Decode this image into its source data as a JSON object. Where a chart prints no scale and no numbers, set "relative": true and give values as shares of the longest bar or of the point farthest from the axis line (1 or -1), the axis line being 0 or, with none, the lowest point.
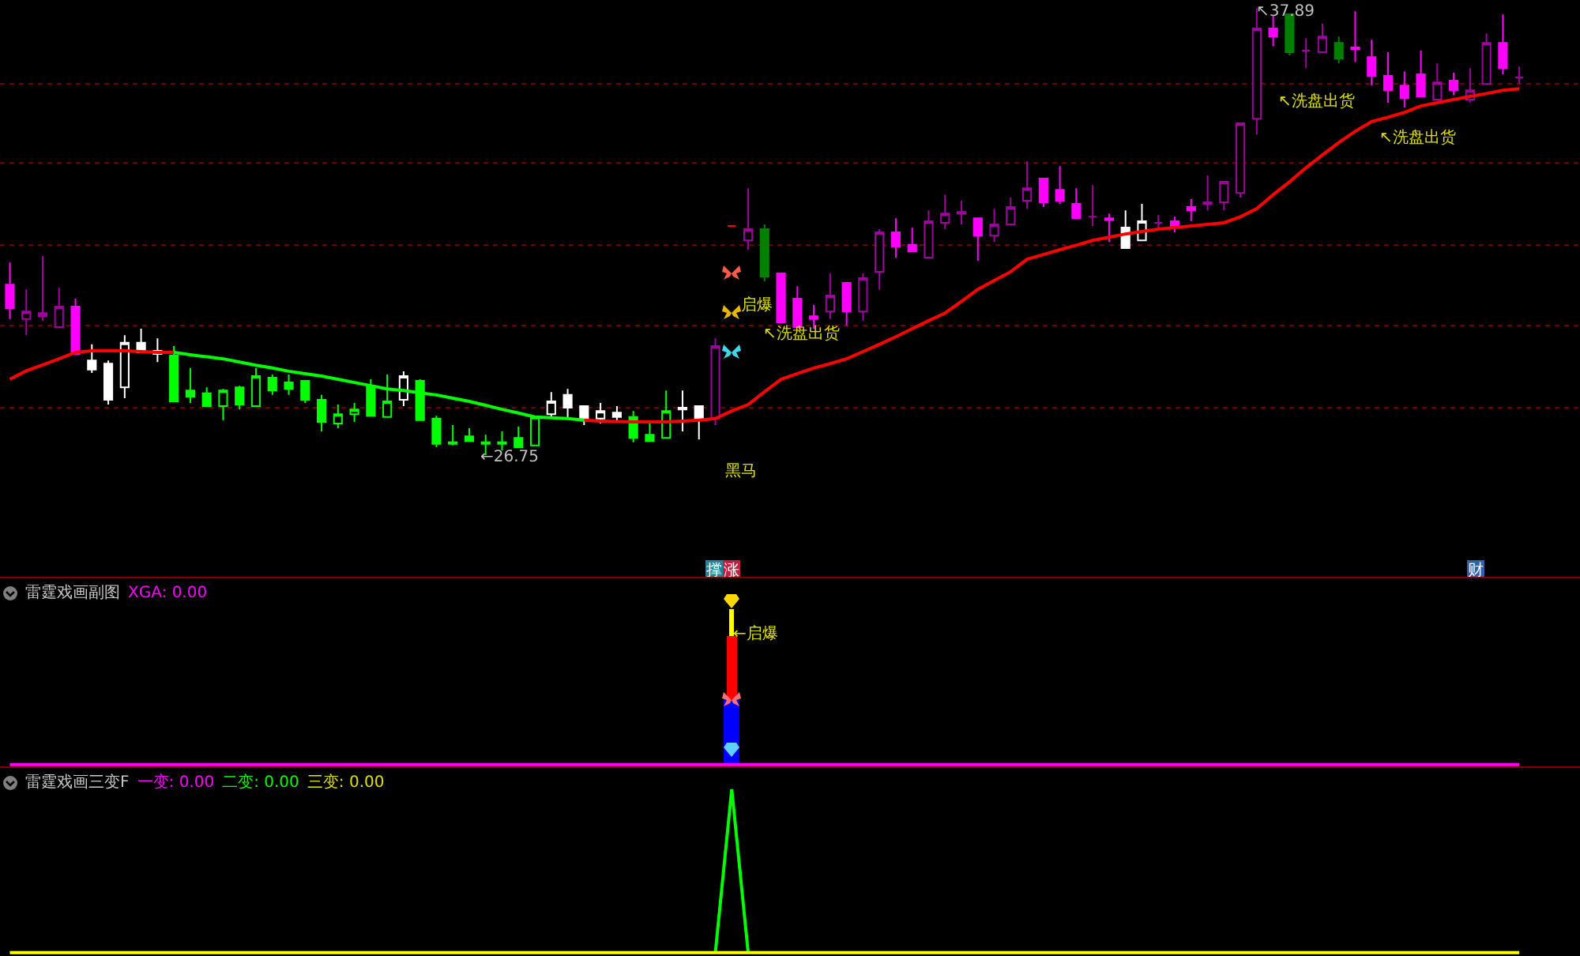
{
  "chart_data": [
    {
      "type": "candlestick",
      "grid": "y",
      "ylim": [
        23.68,
        38.09
      ],
      "yticks": [
        {
          "value": 27.93,
          "label": null
        },
        {
          "value": 29.98,
          "label": null
        },
        {
          "value": 31.98,
          "label": null
        },
        {
          "value": 34.03,
          "label": null
        },
        {
          "value": 36.0,
          "label": null
        }
      ],
      "categories": [
        null,
        null,
        null,
        null,
        null,
        null,
        null,
        null,
        null,
        null,
        null,
        null,
        null,
        null,
        null,
        null,
        null,
        null,
        null,
        null,
        null,
        null,
        null,
        null,
        null,
        null,
        null,
        null,
        null,
        null,
        null,
        null,
        null,
        null,
        null,
        null,
        null,
        null,
        null,
        null,
        null,
        null,
        null,
        null,
        null,
        null,
        null,
        null,
        null,
        null,
        null,
        null,
        null,
        null,
        null,
        null,
        null,
        null,
        null,
        null,
        null,
        null,
        null,
        null,
        null,
        null,
        null,
        null,
        null,
        null,
        null,
        null,
        null,
        null,
        null,
        null,
        null,
        null,
        null,
        null,
        null,
        null,
        null,
        null,
        null,
        null,
        null,
        null,
        null,
        null,
        null,
        null,
        null
      ],
      "ohlc": [
        [
          31.0,
          31.55,
          30.14,
          30.41
        ],
        [
          30.14,
          30.88,
          29.74,
          30.33
        ],
        [
          30.21,
          31.71,
          30.1,
          30.29
        ],
        [
          29.94,
          30.92,
          29.94,
          30.45
        ],
        [
          30.45,
          30.65,
          29.27,
          29.27
        ],
        [
          29.11,
          29.51,
          28.8,
          28.88
        ],
        [
          29.03,
          29.11,
          28.01,
          28.13
        ],
        [
          28.44,
          29.74,
          28.17,
          29.55
        ],
        [
          29.55,
          29.9,
          29.31,
          29.31
        ],
        [
          29.27,
          29.66,
          29.07,
          29.35
        ],
        [
          29.23,
          29.47,
          28.09,
          28.09
        ],
        [
          28.36,
          28.92,
          28.05,
          28.21
        ],
        [
          28.29,
          28.44,
          27.97,
          27.97
        ],
        [
          27.97,
          28.4,
          27.62,
          28.36
        ],
        [
          28.44,
          28.48,
          27.89,
          28.01
        ],
        [
          27.97,
          28.92,
          27.97,
          28.72
        ],
        [
          28.68,
          28.76,
          28.25,
          28.36
        ],
        [
          28.56,
          28.76,
          28.25,
          28.4
        ],
        [
          28.6,
          28.6,
          28.05,
          28.13
        ],
        [
          28.13,
          28.25,
          27.34,
          27.58
        ],
        [
          27.54,
          28.01,
          27.42,
          27.77
        ],
        [
          27.77,
          28.05,
          27.58,
          27.89
        ],
        [
          28.48,
          28.64,
          27.73,
          27.73
        ],
        [
          27.7,
          28.76,
          27.7,
          28.09
        ],
        [
          28.13,
          28.84,
          27.97,
          28.72
        ],
        [
          28.6,
          28.64,
          27.62,
          27.62
        ],
        [
          27.66,
          27.73,
          26.95,
          27.03
        ],
        [
          27.07,
          27.5,
          26.99,
          27.03
        ],
        [
          27.22,
          27.42,
          27.1,
          27.1
        ],
        [
          27.07,
          27.26,
          26.75,
          27.03
        ],
        [
          27.03,
          27.34,
          26.87,
          27.07
        ],
        [
          27.18,
          27.46,
          26.95,
          26.95
        ],
        [
          26.99,
          27.7,
          26.99,
          27.7
        ],
        [
          27.77,
          28.32,
          27.66,
          28.09
        ],
        [
          28.25,
          28.4,
          27.66,
          27.93
        ],
        [
          27.97,
          27.97,
          27.5,
          27.66
        ],
        [
          27.66,
          28.05,
          27.54,
          27.85
        ],
        [
          27.81,
          27.97,
          27.58,
          27.7
        ],
        [
          27.7,
          27.85,
          27.07,
          27.18
        ],
        [
          27.26,
          27.58,
          27.1,
          27.1
        ],
        [
          27.18,
          28.36,
          27.18,
          27.85
        ],
        [
          27.89,
          28.36,
          27.34,
          27.93
        ],
        [
          27.97,
          27.97,
          27.14,
          27.66
        ],
        [
          27.66,
          29.66,
          27.5,
          29.47
        ],
        [
          32.46,
          32.46,
          32.46,
          32.46
        ],
        [
          32.1,
          33.4,
          31.87,
          32.38
        ],
        [
          32.38,
          32.5,
          31.08,
          31.2
        ],
        [
          31.28,
          31.28,
          30.06,
          30.06
        ],
        [
          30.65,
          30.96,
          29.94,
          29.94
        ],
        [
          30.21,
          30.49,
          29.9,
          30.14
        ],
        [
          30.33,
          31.28,
          30.14,
          30.73
        ],
        [
          31.04,
          31.04,
          29.98,
          30.33
        ],
        [
          30.33,
          31.28,
          30.1,
          31.16
        ],
        [
          31.32,
          32.38,
          30.88,
          32.3
        ],
        [
          32.3,
          32.65,
          31.67,
          31.95
        ],
        [
          31.99,
          32.42,
          31.83,
          31.83
        ],
        [
          31.67,
          32.85,
          31.67,
          32.58
        ],
        [
          32.54,
          33.24,
          32.38,
          32.77
        ],
        [
          32.77,
          33.09,
          32.5,
          32.81
        ],
        [
          32.65,
          32.65,
          31.59,
          32.22
        ],
        [
          32.22,
          32.89,
          32.06,
          32.5
        ],
        [
          32.5,
          33.17,
          32.5,
          32.93
        ],
        [
          33.09,
          34.07,
          32.89,
          33.4
        ],
        [
          33.64,
          33.64,
          32.93,
          33.05
        ],
        [
          33.36,
          33.95,
          33.01,
          33.09
        ],
        [
          33.01,
          33.4,
          32.65,
          32.65
        ],
        [
          32.69,
          33.48,
          32.46,
          32.69
        ],
        [
          32.65,
          32.77,
          32.06,
          32.61
        ],
        [
          32.42,
          32.85,
          31.91,
          31.91
        ],
        [
          32.1,
          33.01,
          32.1,
          32.58
        ],
        [
          32.54,
          32.73,
          32.34,
          32.54
        ],
        [
          32.58,
          32.69,
          32.3,
          32.46
        ],
        [
          32.93,
          33.13,
          32.58,
          32.85
        ],
        [
          33.01,
          33.72,
          32.85,
          33.05
        ],
        [
          33.05,
          33.56,
          32.85,
          33.56
        ],
        [
          33.28,
          35.02,
          33.17,
          35.02
        ],
        [
          35.13,
          37.89,
          34.74,
          37.38
        ],
        [
          37.38,
          37.69,
          36.94,
          37.18
        ],
        [
          37.73,
          37.73,
          36.71,
          36.79
        ],
        [
          36.83,
          37.14,
          36.39,
          36.83
        ],
        [
          36.79,
          37.5,
          36.79,
          37.18
        ],
        [
          37.02,
          37.18,
          36.51,
          36.63
        ],
        [
          36.91,
          37.81,
          36.55,
          36.87
        ],
        [
          36.67,
          37.1,
          35.96,
          36.2
        ],
        [
          36.2,
          36.79,
          35.53,
          35.84
        ],
        [
          35.96,
          36.31,
          35.41,
          35.65
        ],
        [
          36.24,
          36.83,
          35.69,
          35.69
        ],
        [
          35.61,
          36.51,
          35.61,
          36.04
        ],
        [
          36.08,
          36.28,
          35.72,
          35.84
        ],
        [
          35.61,
          36.39,
          35.53,
          35.84
        ],
        [
          36.0,
          37.26,
          36.0,
          37.02
        ],
        [
          37.02,
          37.73,
          36.24,
          36.39
        ],
        [
          36.16,
          36.43,
          36.0,
          36.16
        ]
      ],
      "colors": [
        "#ff00ff",
        "#a000a0",
        "#a000a0",
        "#a000a0",
        "#ff00ff",
        "#ffffff",
        "#ffffff",
        "#ffffff",
        "#ffffff",
        "#ffffff",
        "#00ff00",
        "#00ff00",
        "#00ff00",
        "#00ff00",
        "#00ff00",
        "#00ff00",
        "#00ff00",
        "#00ff00",
        "#00ff00",
        "#00ff00",
        "#00ff00",
        "#00ff00",
        "#00ff00",
        "#00ff00",
        "#ffffff",
        "#00ff00",
        "#00ff00",
        "#00ff00",
        "#00ff00",
        "#00ff00",
        "#00ff00",
        "#00ff00",
        "#00ff00",
        "#ffffff",
        "#ffffff",
        "#ffffff",
        "#ffffff",
        "#ffffff",
        "#00ff00",
        "#00ff00",
        "#00ff00",
        "#ffffff",
        "#ffffff",
        "#a000a0",
        "#ff0000",
        "#a000a0",
        "#008000",
        "#ff00ff",
        "#ff00ff",
        "#ff00ff",
        "#a000a0",
        "#ff00ff",
        "#a000a0",
        "#a000a0",
        "#ff00ff",
        "#ff00ff",
        "#a000a0",
        "#a000a0",
        "#a000a0",
        "#ff00ff",
        "#a000a0",
        "#a000a0",
        "#a000a0",
        "#ff00ff",
        "#ff00ff",
        "#ff00ff",
        "#a000a0",
        "#ff00ff",
        "#ffffff",
        "#ffffff",
        "#a000a0",
        "#ff00ff",
        "#ff00ff",
        "#a000a0",
        "#a000a0",
        "#a000a0",
        "#a000a0",
        "#ff00ff",
        "#008000",
        "#a000a0",
        "#a000a0",
        "#008000",
        "#ff00ff",
        "#ff00ff",
        "#ff00ff",
        "#ff00ff",
        "#ff00ff",
        "#a000a0",
        "#ff00ff",
        "#a000a0",
        "#a000a0",
        "#ff00ff",
        "#a000a0"
      ],
      "series": [
        {
          "type": "line",
          "color": "#ff0000",
          "values": [
            28.64,
            28.85,
            29.0,
            29.15,
            29.31,
            29.35,
            29.35,
            29.35,
            29.33,
            29.31,
            29.31,
            null,
            null,
            null,
            null,
            null,
            null,
            null,
            null,
            null,
            null,
            null,
            null,
            null,
            null,
            null,
            null,
            null,
            null,
            null,
            null,
            null,
            null,
            null,
            null,
            null,
            null,
            null,
            null,
            null,
            null,
            null,
            null,
            null,
            null,
            null,
            null,
            null,
            null,
            null,
            null,
            null,
            null,
            null,
            null,
            null,
            null,
            null,
            null,
            null,
            null,
            null,
            null,
            null,
            null,
            null,
            null,
            null,
            null,
            null,
            null,
            null,
            null,
            null,
            null,
            null,
            null,
            null,
            null,
            null,
            null,
            null,
            null,
            null,
            null,
            null,
            null,
            null,
            null,
            null,
            null,
            null,
            null
          ]
        },
        {
          "type": "line",
          "color": "#00ff00",
          "values": [
            null,
            null,
            null,
            null,
            null,
            null,
            null,
            null,
            null,
            null,
            29.31,
            29.25,
            29.2,
            29.15,
            29.07,
            28.99,
            28.92,
            28.84,
            28.78,
            28.72,
            28.64,
            28.56,
            28.48,
            28.4,
            28.36,
            28.3,
            28.25,
            28.17,
            28.09,
            27.99,
            27.89,
            27.8,
            27.7,
            27.68,
            27.66,
            27.62,
            null,
            null,
            null,
            null,
            null,
            null,
            null,
            null,
            null,
            null,
            null,
            null,
            null,
            null,
            null,
            null,
            null,
            null,
            null,
            null,
            null,
            null,
            null,
            null,
            null,
            null,
            null,
            null,
            null,
            null,
            null,
            null,
            null,
            null,
            null,
            null,
            null,
            null,
            null,
            null,
            null,
            null,
            null,
            null,
            null,
            null,
            null,
            null,
            null,
            null,
            null,
            null,
            null,
            null,
            null,
            null,
            null
          ]
        },
        {
          "type": "line",
          "color": "#ff0000",
          "values": [
            null,
            null,
            null,
            null,
            null,
            null,
            null,
            null,
            null,
            null,
            null,
            null,
            null,
            null,
            null,
            null,
            null,
            null,
            null,
            null,
            null,
            null,
            null,
            null,
            null,
            null,
            null,
            null,
            null,
            null,
            null,
            null,
            null,
            null,
            null,
            27.62,
            27.6,
            27.59,
            27.58,
            27.58,
            27.58,
            27.6,
            27.62,
            27.66,
            27.85,
            28.01,
            28.33,
            28.64,
            28.78,
            28.92,
            29.03,
            29.15,
            29.33,
            29.51,
            29.7,
            29.9,
            30.1,
            30.29,
            30.58,
            30.88,
            31.1,
            31.32,
            31.63,
            31.75,
            31.87,
            31.98,
            32.1,
            32.18,
            32.26,
            32.32,
            32.38,
            32.42,
            32.46,
            32.5,
            32.54,
            32.69,
            32.89,
            33.24,
            33.56,
            33.91,
            34.23,
            34.54,
            34.82,
            35.06,
            35.17,
            35.29,
            35.45,
            35.53,
            35.61,
            35.69,
            35.76,
            35.84,
            35.88
          ]
        }
      ],
      "annotations": [
        "←26.75",
        "↖37.89",
        "启爆",
        "↖洗盘出货",
        "↖洗盘出货",
        "↖洗盘出货",
        "黑马",
        "撑",
        "涨",
        "财"
      ]
    },
    {
      "type": "bar",
      "title": "雷霆戏画副图",
      "stacked": true,
      "relative": true,
      "categories": [
        null,
        null,
        null,
        null,
        null,
        null,
        null,
        null,
        null,
        null,
        null,
        null,
        null,
        null,
        null,
        null,
        null,
        null,
        null,
        null,
        null,
        null,
        null,
        null,
        null,
        null,
        null,
        null,
        null,
        null,
        null,
        null,
        null,
        null,
        null,
        null,
        null,
        null,
        null,
        null,
        null,
        null,
        null,
        null,
        null,
        null,
        null,
        null,
        null,
        null,
        null,
        null,
        null,
        null,
        null,
        null,
        null,
        null,
        null,
        null,
        null,
        null,
        null,
        null,
        null,
        null,
        null,
        null,
        null,
        null,
        null,
        null,
        null,
        null,
        null,
        null,
        null,
        null,
        null,
        null,
        null,
        null,
        null,
        null,
        null,
        null,
        null,
        null,
        null,
        null,
        null,
        null,
        null
      ],
      "series": [
        {
          "color": "#0000ff",
          "values": [
            null,
            null,
            null,
            null,
            null,
            null,
            null,
            null,
            null,
            null,
            null,
            null,
            null,
            null,
            null,
            null,
            null,
            null,
            null,
            null,
            null,
            null,
            null,
            null,
            null,
            null,
            null,
            null,
            null,
            null,
            null,
            null,
            null,
            null,
            null,
            null,
            null,
            null,
            null,
            null,
            null,
            null,
            null,
            null,
            0.42,
            null,
            null,
            null,
            null,
            null,
            null,
            null,
            null,
            null,
            null,
            null,
            null,
            null,
            null,
            null,
            null,
            null,
            null,
            null,
            null,
            null,
            null,
            null,
            null,
            null,
            null,
            null,
            null,
            null,
            null,
            null,
            null,
            null,
            null,
            null,
            null,
            null,
            null,
            null,
            null,
            null,
            null,
            null,
            null,
            null,
            null,
            null,
            null
          ]
        },
        {
          "color": "#ff0000",
          "values": [
            null,
            null,
            null,
            null,
            null,
            null,
            null,
            null,
            null,
            null,
            null,
            null,
            null,
            null,
            null,
            null,
            null,
            null,
            null,
            null,
            null,
            null,
            null,
            null,
            null,
            null,
            null,
            null,
            null,
            null,
            null,
            null,
            null,
            null,
            null,
            null,
            null,
            null,
            null,
            null,
            null,
            null,
            null,
            null,
            0.41,
            null,
            null,
            null,
            null,
            null,
            null,
            null,
            null,
            null,
            null,
            null,
            null,
            null,
            null,
            null,
            null,
            null,
            null,
            null,
            null,
            null,
            null,
            null,
            null,
            null,
            null,
            null,
            null,
            null,
            null,
            null,
            null,
            null,
            null,
            null,
            null,
            null,
            null,
            null,
            null,
            null,
            null,
            null,
            null,
            null,
            null,
            null,
            null
          ]
        },
        {
          "color": "#ffff00",
          "values": [
            null,
            null,
            null,
            null,
            null,
            null,
            null,
            null,
            null,
            null,
            null,
            null,
            null,
            null,
            null,
            null,
            null,
            null,
            null,
            null,
            null,
            null,
            null,
            null,
            null,
            null,
            null,
            null,
            null,
            null,
            null,
            null,
            null,
            null,
            null,
            null,
            null,
            null,
            null,
            null,
            null,
            null,
            null,
            null,
            0.17,
            null,
            null,
            null,
            null,
            null,
            null,
            null,
            null,
            null,
            null,
            null,
            null,
            null,
            null,
            null,
            null,
            null,
            null,
            null,
            null,
            null,
            null,
            null,
            null,
            null,
            null,
            null,
            null,
            null,
            null,
            null,
            null,
            null,
            null,
            null,
            null,
            null,
            null,
            null,
            null,
            null,
            null,
            null,
            null,
            null,
            null,
            null,
            null
          ]
        },
        {
          "type": "line",
          "color": "#ff00ff",
          "values": [
            0,
            0,
            0,
            0,
            0,
            0,
            0,
            0,
            0,
            0,
            0,
            0,
            0,
            0,
            0,
            0,
            0,
            0,
            0,
            0,
            0,
            0,
            0,
            0,
            0,
            0,
            0,
            0,
            0,
            0,
            0,
            0,
            0,
            0,
            0,
            0,
            0,
            0,
            0,
            0,
            0,
            0,
            0,
            0,
            0,
            0,
            0,
            0,
            0,
            0,
            0,
            0,
            0,
            0,
            0,
            0,
            0,
            0,
            0,
            0,
            0,
            0,
            0,
            0,
            0,
            0,
            0,
            0,
            0,
            0,
            0,
            0,
            0,
            0,
            0,
            0,
            0,
            0,
            0,
            0,
            0,
            0,
            0,
            0,
            0,
            0,
            0,
            0,
            0,
            0,
            0,
            0,
            0
          ]
        }
      ],
      "annotations": [
        "XGA: 0.00",
        "←启爆"
      ]
    },
    {
      "type": "line",
      "title": "雷霆戏画三变F",
      "relative": true,
      "categories": [
        null,
        null,
        null,
        null,
        null,
        null,
        null,
        null,
        null,
        null,
        null,
        null,
        null,
        null,
        null,
        null,
        null,
        null,
        null,
        null,
        null,
        null,
        null,
        null,
        null,
        null,
        null,
        null,
        null,
        null,
        null,
        null,
        null,
        null,
        null,
        null,
        null,
        null,
        null,
        null,
        null,
        null,
        null,
        null,
        null,
        null,
        null,
        null,
        null,
        null,
        null,
        null,
        null,
        null,
        null,
        null,
        null,
        null,
        null,
        null,
        null,
        null,
        null,
        null,
        null,
        null,
        null,
        null,
        null,
        null,
        null,
        null,
        null,
        null,
        null,
        null,
        null,
        null,
        null,
        null,
        null,
        null,
        null,
        null,
        null,
        null,
        null,
        null,
        null,
        null,
        null,
        null,
        null
      ],
      "series": [
        {
          "color": "#00ff00",
          "values": [
            null,
            null,
            null,
            null,
            null,
            null,
            null,
            null,
            null,
            null,
            null,
            null,
            null,
            null,
            null,
            null,
            null,
            null,
            null,
            null,
            null,
            null,
            null,
            null,
            null,
            null,
            null,
            null,
            null,
            null,
            null,
            null,
            null,
            null,
            null,
            null,
            null,
            null,
            null,
            null,
            null,
            null,
            null,
            0,
            1,
            0,
            null,
            null,
            null,
            null,
            null,
            null,
            null,
            null,
            null,
            null,
            null,
            null,
            null,
            null,
            null,
            null,
            null,
            null,
            null,
            null,
            null,
            null,
            null,
            null,
            null,
            null,
            null,
            null,
            null,
            null,
            null,
            null,
            null,
            null,
            null,
            null,
            null,
            null,
            null,
            null,
            null,
            null,
            null,
            null,
            null,
            null,
            null
          ]
        },
        {
          "color": "#ffff00",
          "values": [
            0,
            0,
            0,
            0,
            0,
            0,
            0,
            0,
            0,
            0,
            0,
            0,
            0,
            0,
            0,
            0,
            0,
            0,
            0,
            0,
            0,
            0,
            0,
            0,
            0,
            0,
            0,
            0,
            0,
            0,
            0,
            0,
            0,
            0,
            0,
            0,
            0,
            0,
            0,
            0,
            0,
            0,
            0,
            0,
            0,
            0,
            0,
            0,
            0,
            0,
            0,
            0,
            0,
            0,
            0,
            0,
            0,
            0,
            0,
            0,
            0,
            0,
            0,
            0,
            0,
            0,
            0,
            0,
            0,
            0,
            0,
            0,
            0,
            0,
            0,
            0,
            0,
            0,
            0,
            0,
            0,
            0,
            0,
            0,
            0,
            0,
            0,
            0,
            0,
            0,
            0,
            0,
            0
          ]
        }
      ],
      "annotations": [
        "一变: 0.00",
        "二变: 0.00",
        "三变: 0.00"
      ]
    }
  ]
}
